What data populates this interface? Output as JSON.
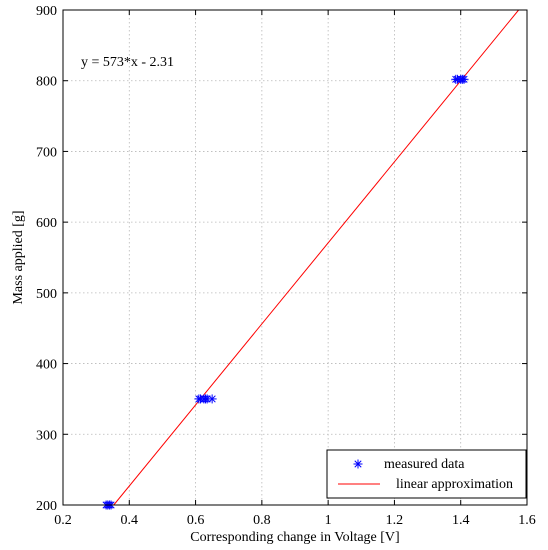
{
  "chart_data": {
    "type": "scatter",
    "title": "",
    "xlabel": "Corresponding change in Voltage [V]",
    "ylabel": "Mass applied [g]",
    "xlim": [
      0.2,
      1.6
    ],
    "ylim": [
      200,
      900
    ],
    "xticks": [
      0.2,
      0.4,
      0.6,
      0.8,
      1.0,
      1.2,
      1.4,
      1.6
    ],
    "yticks": [
      200,
      300,
      400,
      500,
      600,
      700,
      800,
      900
    ],
    "xtick_labels": [
      "0.2",
      "0.4",
      "0.6",
      "0.8",
      "1",
      "1.2",
      "1.4",
      "1.6"
    ],
    "ytick_labels": [
      "200",
      "300",
      "400",
      "500",
      "600",
      "700",
      "800",
      "900"
    ],
    "grid": true,
    "legend_position": "bottom-right",
    "annotation": "y = 573*x - 2.31",
    "series": [
      {
        "name": "measured data",
        "marker": "asterisk",
        "color": "#0000ff",
        "points": [
          {
            "x": 0.33,
            "y": 200
          },
          {
            "x": 0.335,
            "y": 200
          },
          {
            "x": 0.34,
            "y": 200
          },
          {
            "x": 0.345,
            "y": 200
          },
          {
            "x": 0.61,
            "y": 350
          },
          {
            "x": 0.615,
            "y": 350
          },
          {
            "x": 0.625,
            "y": 350
          },
          {
            "x": 0.63,
            "y": 350
          },
          {
            "x": 0.635,
            "y": 350
          },
          {
            "x": 0.65,
            "y": 350
          },
          {
            "x": 1.385,
            "y": 802
          },
          {
            "x": 1.39,
            "y": 802
          },
          {
            "x": 1.4,
            "y": 802
          },
          {
            "x": 1.405,
            "y": 802
          },
          {
            "x": 1.41,
            "y": 802
          }
        ]
      },
      {
        "name": "linear approximation",
        "marker": "line",
        "color": "#ff0000",
        "slope": 573,
        "intercept": -2.31
      }
    ]
  }
}
